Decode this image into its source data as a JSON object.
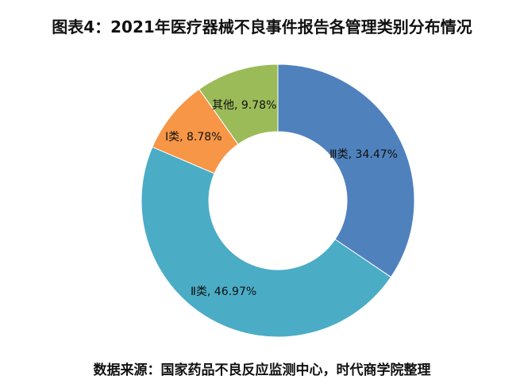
{
  "title": "图表4：2021年医疗器械不良事件报告各管理类别分布情况",
  "source": "数据来源：国家药品不良反应监测中心，时代商学院整理",
  "chart_data": {
    "type": "pie",
    "style": "donut",
    "title": "图表4：2021年医疗器械不良事件报告各管理类别分布情况",
    "unit": "%",
    "slices": [
      {
        "category": "Ⅲ类",
        "value": 34.47,
        "label": "Ⅲ类, 34.47%",
        "color": "#4F81BD"
      },
      {
        "category": "Ⅱ类",
        "value": 46.97,
        "label": "Ⅱ类, 46.97%",
        "color": "#4BACC6"
      },
      {
        "category": "Ⅰ类",
        "value": 8.78,
        "label": "Ⅰ类, 8.78%",
        "color": "#F79646"
      },
      {
        "category": "其他",
        "value": 9.78,
        "label": "其他, 9.78%",
        "color": "#9BBB59"
      }
    ],
    "legend": "none",
    "start_angle": "12 o'clock",
    "direction": "clockwise"
  }
}
